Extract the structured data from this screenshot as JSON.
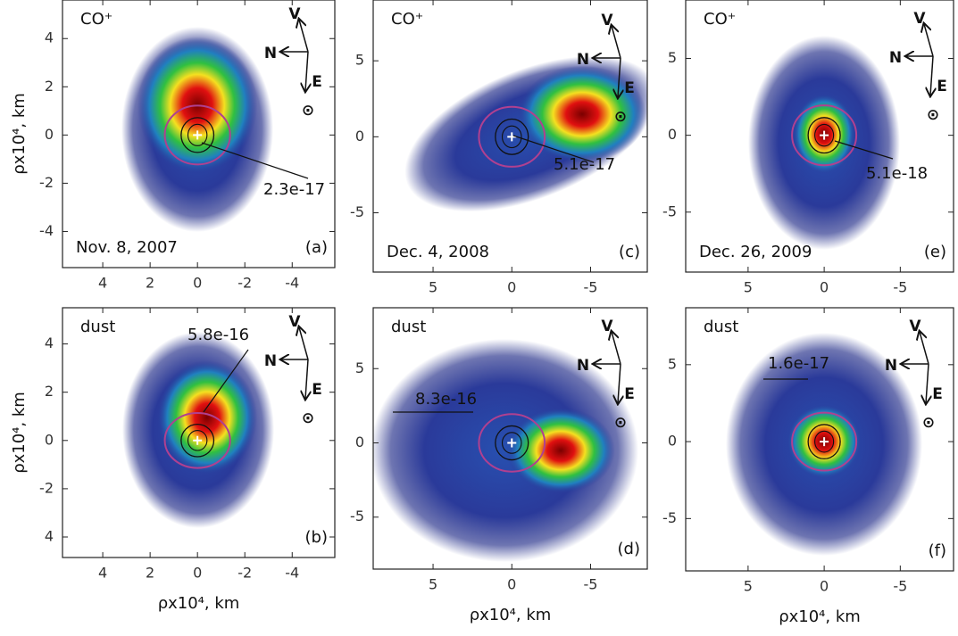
{
  "chart_data": [
    {
      "type": "image",
      "title": "CO⁺",
      "note": "Nov. 8, 2007",
      "panel": "(a)",
      "annotation": "2.3e-17",
      "ylabel": "ρx10⁴, km",
      "compass": [
        "V",
        "N",
        "E",
        "⊙"
      ],
      "xlim": [
        5.7,
        -5.8
      ],
      "ylim": [
        -5.5,
        5.6
      ],
      "xticks": [
        4,
        2,
        0,
        -2,
        -4
      ],
      "yticks": [
        4,
        2,
        0,
        -2,
        -4
      ]
    },
    {
      "type": "image",
      "title": "dust",
      "panel": "(b)",
      "annotation": "5.8e-16",
      "ylabel": "ρx10⁴, km",
      "xlabel": "ρx10⁴, km",
      "compass": [
        "V",
        "N",
        "E",
        "⊙"
      ],
      "xlim": [
        5.7,
        -5.8
      ],
      "ylim": [
        -4.85,
        5.5
      ],
      "xticks": [
        4,
        2,
        0,
        -2,
        -4
      ],
      "yticks": [
        4,
        2,
        0,
        -2,
        {
          "value": -4,
          "label": "4"
        }
      ]
    },
    {
      "type": "image",
      "title": "CO⁺",
      "note": "Dec. 4, 2008",
      "panel": "(c)",
      "annotation": "5.1e-17",
      "compass": [
        "V",
        "N",
        "E",
        "⊙"
      ],
      "xlim": [
        8.8,
        -8.6
      ],
      "ylim": [
        -8.9,
        9.0
      ],
      "xticks": [
        5,
        0,
        -5
      ],
      "yticks": [
        5,
        0,
        -5
      ]
    },
    {
      "type": "image",
      "title": "dust",
      "panel": "(d)",
      "annotation": "8.3e-16",
      "xlabel": "ρx10⁴, km",
      "compass": [
        "V",
        "N",
        "E",
        "⊙"
      ],
      "xlim": [
        8.8,
        -8.6
      ],
      "ylim": [
        -8.5,
        9.1
      ],
      "xticks": [
        5,
        0,
        -5
      ],
      "yticks": [
        5,
        0,
        -5
      ]
    },
    {
      "type": "image",
      "title": "CO⁺",
      "note": "Dec. 26, 2009",
      "panel": "(e)",
      "annotation": "5.1e-18",
      "compass": [
        "V",
        "N",
        "E",
        "⊙"
      ],
      "xlim": [
        9.1,
        -8.5
      ],
      "ylim": [
        -8.9,
        8.8
      ],
      "xticks": [
        5,
        0,
        -5
      ],
      "yticks": [
        5,
        0,
        -5
      ]
    },
    {
      "type": "image",
      "title": "dust",
      "panel": "(f)",
      "annotation": "1.6e-17",
      "xlabel": "ρx10⁴, km",
      "compass": [
        "V",
        "N",
        "E",
        "⊙"
      ],
      "xlim": [
        9.1,
        -8.5
      ],
      "ylim": [
        -8.4,
        8.7
      ],
      "xticks": [
        5,
        0,
        -5
      ],
      "yticks": [
        5,
        0,
        -5
      ]
    }
  ]
}
